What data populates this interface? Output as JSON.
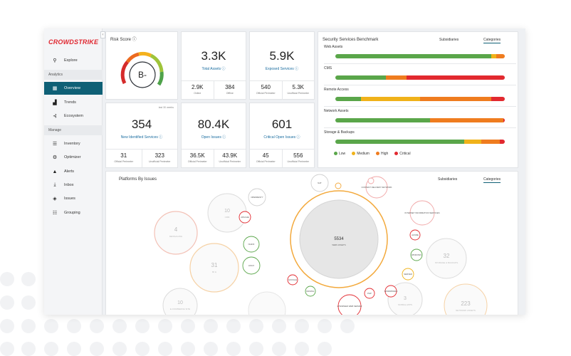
{
  "logo": "CROWDSTRIKE",
  "sidebar": {
    "items": [
      {
        "label": "Explore",
        "icon": "search-icon"
      },
      {
        "label": "Overview",
        "icon": "dashboard-icon",
        "active": true
      },
      {
        "label": "Trends",
        "icon": "trends-icon"
      },
      {
        "label": "Ecosystem",
        "icon": "ecosystem-icon"
      },
      {
        "label": "Inventory",
        "icon": "inventory-icon"
      },
      {
        "label": "Optimizer",
        "icon": "optimizer-icon"
      },
      {
        "label": "Alerts",
        "icon": "bell-icon"
      },
      {
        "label": "Inbox",
        "icon": "inbox-icon"
      },
      {
        "label": "Issues",
        "icon": "shield-icon"
      },
      {
        "label": "Grouping",
        "icon": "grouping-icon"
      }
    ],
    "sections": [
      "Analytics",
      "Manage"
    ]
  },
  "risk": {
    "title": "Risk Score ⓘ",
    "grade": "B-"
  },
  "total_assets": {
    "value": "3.3K",
    "label": "Total Assets ⓘ",
    "a_num": "2.9K",
    "a_lbl": "Online",
    "b_num": "384",
    "b_lbl": "Offline"
  },
  "exposed": {
    "value": "5.9K",
    "label": "Exposed Services ⓘ",
    "a_num": "540",
    "a_lbl": "Official Perimeter",
    "b_num": "5.3K",
    "b_lbl": "Unofficial Perimeter"
  },
  "new_services": {
    "value": "354",
    "label": "New Identified Services ⓘ",
    "tiny": "last 30 weeks",
    "a_num": "31",
    "a_lbl": "Official Perimeter",
    "b_num": "323",
    "b_lbl": "Unofficial Perimeter"
  },
  "open_issues": {
    "value": "80.4K",
    "label": "Open Issues ⓘ",
    "a_num": "36.5K",
    "a_lbl": "Official Perimeter",
    "b_num": "43.9K",
    "b_lbl": "Unofficial Perimeter"
  },
  "critical": {
    "value": "601",
    "label": "Critical Open Issues ⓘ",
    "a_num": "45",
    "a_lbl": "Official Perimeter",
    "b_num": "556",
    "b_lbl": "Unofficial Perimeter"
  },
  "benchmark": {
    "title": "Security Services Benchmark",
    "tabs": [
      "Subsidiaries",
      "Categories"
    ],
    "rows": [
      {
        "label": "Web Assets",
        "segments": [
          0.92,
          0.03,
          0.05,
          0
        ]
      },
      {
        "label": "CMS",
        "segments": [
          0.3,
          0.0,
          0.12,
          0.58
        ]
      },
      {
        "label": "Remote Access",
        "segments": [
          0.15,
          0.35,
          0.42,
          0.08
        ]
      },
      {
        "label": "Network Assets",
        "segments": [
          0.56,
          0.0,
          0.43,
          0.01
        ]
      },
      {
        "label": "Storage & Backups",
        "segments": [
          0.76,
          0.1,
          0.11,
          0.03
        ]
      }
    ],
    "legend": [
      {
        "label": "Low",
        "color": "#5aa64a"
      },
      {
        "label": "Medium",
        "color": "#f0b21a"
      },
      {
        "label": "High",
        "color": "#ef7c1f"
      },
      {
        "label": "Critical",
        "color": "#e2292f"
      }
    ]
  },
  "platforms": {
    "title": "Platforms By Issues",
    "tabs": [
      "Subsidiaries",
      "Categories"
    ],
    "main": {
      "value": "5534",
      "label": "WEB ASSETS"
    },
    "bubbles": [
      {
        "value": "4",
        "label": "MESSAGING"
      },
      {
        "value": "10",
        "label": "CRM"
      },
      {
        "value": "31",
        "label": "BI &"
      },
      {
        "value": "32",
        "label": "STORAGE & BACKUPS"
      },
      {
        "value": "3",
        "label": "MOBILE APPS"
      },
      {
        "value": "10",
        "label": "E-COMMERCE SITE"
      },
      {
        "value": "223",
        "label": "NETWORK ASSETS"
      },
      {
        "value": "",
        "label": "OPENRESTY"
      },
      {
        "value": "",
        "label": "NAT"
      },
      {
        "value": "",
        "label": "CONTENT DELIVERY NETWORK"
      },
      {
        "value": "",
        "label": "APACHE"
      },
      {
        "value": "",
        "label": "INTERNET INFORMATION SERVICES"
      },
      {
        "value": "",
        "label": "AZURE"
      },
      {
        "value": "",
        "label": "WINDOWS"
      },
      {
        "value": "",
        "label": "SERVER"
      },
      {
        "value": "",
        "label": "NGINX"
      },
      {
        "value": "",
        "label": "LINUX"
      },
      {
        "value": "",
        "label": "PHP"
      },
      {
        "value": "",
        "label": "LITESPEED WEB SERVER"
      },
      {
        "value": "",
        "label": "WORDPRESS"
      },
      {
        "value": "",
        "label": "DRUPAL"
      },
      {
        "value": "",
        "label": "GOOGLE"
      }
    ]
  }
}
